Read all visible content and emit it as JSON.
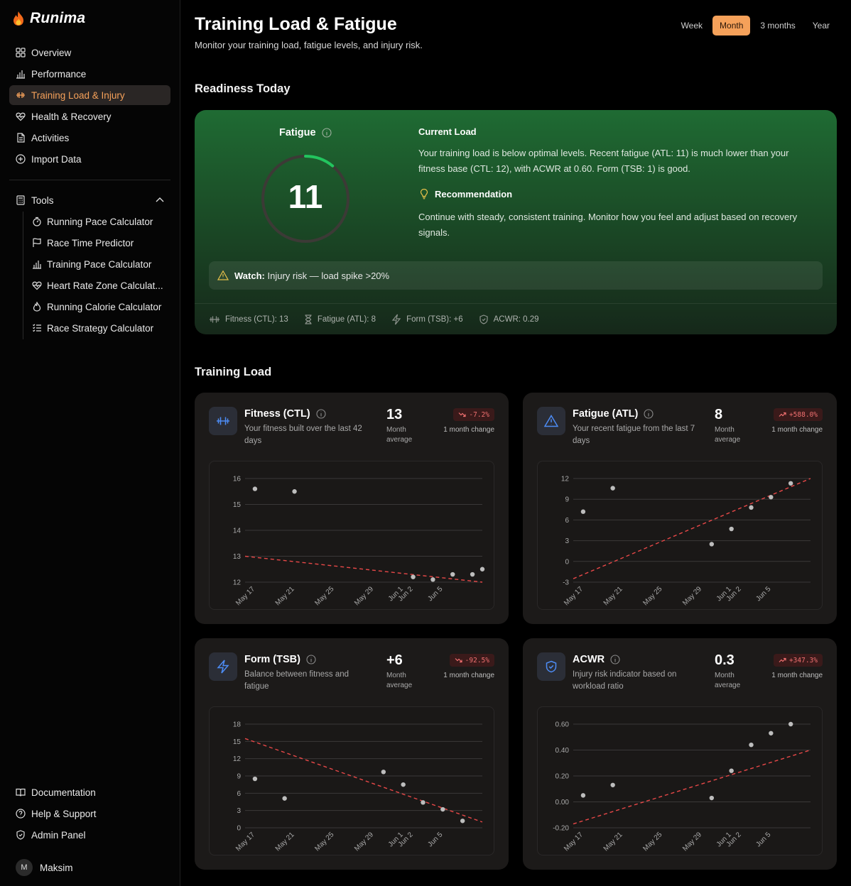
{
  "app": {
    "name": "Runima"
  },
  "sidebar": {
    "items": [
      {
        "label": "Overview",
        "icon": "grid-icon"
      },
      {
        "label": "Performance",
        "icon": "bar-chart-icon"
      },
      {
        "label": "Training Load & Injury",
        "icon": "dumbbell-icon",
        "active": true
      },
      {
        "label": "Health & Recovery",
        "icon": "heart-pulse-icon"
      },
      {
        "label": "Activities",
        "icon": "file-icon"
      },
      {
        "label": "Import Data",
        "icon": "plus-circle-icon"
      }
    ],
    "tools_label": "Tools",
    "tools": [
      {
        "label": "Running Pace Calculator",
        "icon": "timer-icon"
      },
      {
        "label": "Race Time Predictor",
        "icon": "flag-icon"
      },
      {
        "label": "Training Pace Calculator",
        "icon": "bar-chart-icon"
      },
      {
        "label": "Heart Rate Zone Calculat...",
        "icon": "heart-pulse-icon"
      },
      {
        "label": "Running Calorie Calculator",
        "icon": "flame-icon"
      },
      {
        "label": "Race Strategy Calculator",
        "icon": "list-icon"
      }
    ],
    "bottom": [
      {
        "label": "Documentation",
        "icon": "book-icon"
      },
      {
        "label": "Help & Support",
        "icon": "help-icon"
      },
      {
        "label": "Admin Panel",
        "icon": "shield-icon"
      }
    ],
    "user": {
      "initial": "M",
      "name": "Maksim"
    }
  },
  "header": {
    "title": "Training Load & Fatigue",
    "subtitle": "Monitor your training load, fatigue levels, and injury risk.",
    "ranges": [
      "Week",
      "Month",
      "3 months",
      "Year"
    ],
    "active_range": "Month"
  },
  "readiness": {
    "section_title": "Readiness Today",
    "fatigue_label": "Fatigue",
    "fatigue_value": "11",
    "gauge_fraction": 0.11,
    "current_load_title": "Current Load",
    "current_load_text": "Your training load is below optimal levels. Recent fatigue (ATL: 11) is much lower than your fitness base (CTL: 12), with ACWR at 0.60. Form (TSB: 1) is good.",
    "recommendation_title": "Recommendation",
    "recommendation_text": "Continue with steady, consistent training. Monitor how you feel and adjust based on recovery signals.",
    "watch_label": "Watch:",
    "watch_text": "Injury risk — load spike >20%",
    "metrics": [
      {
        "label": "Fitness (CTL): 13",
        "icon": "dumbbell-icon"
      },
      {
        "label": "Fatigue (ATL): 8",
        "icon": "hourglass-icon"
      },
      {
        "label": "Form (TSB): +6",
        "icon": "bolt-icon"
      },
      {
        "label": "ACWR: 0.29",
        "icon": "shield-icon"
      }
    ]
  },
  "training_load": {
    "section_title": "Training Load",
    "avg_label": "Month average",
    "change_label": "1 month change",
    "cards": [
      {
        "title": "Fitness (CTL)",
        "desc": "Your fitness built over the last 42 days",
        "avg": "13",
        "change": "-7.2%",
        "trend": "down",
        "icon": "dumbbell-icon",
        "icon_color": "#4d8cf5"
      },
      {
        "title": "Fatigue (ATL)",
        "desc": "Your recent fatigue from the last 7 days",
        "avg": "8",
        "change": "+588.0%",
        "trend": "up",
        "icon": "warning-icon",
        "icon_color": "#4d8cf5"
      },
      {
        "title": "Form (TSB)",
        "desc": "Balance between fitness and fatigue",
        "avg": "+6",
        "change": "-92.5%",
        "trend": "down",
        "icon": "bolt-icon",
        "icon_color": "#4d8cf5"
      },
      {
        "title": "ACWR",
        "desc": "Injury risk indicator based on workload ratio",
        "avg": "0.3",
        "change": "+347.3%",
        "trend": "up",
        "icon": "shield-check-icon",
        "icon_color": "#4d8cf5"
      }
    ]
  },
  "chart_data": [
    {
      "type": "scatter",
      "title": "Fitness (CTL)",
      "categories": [
        "May 17",
        "May 21",
        "May 25",
        "May 29",
        "Jun 1",
        "Jun 2",
        "Jun 5"
      ],
      "x": [
        17,
        21,
        33,
        35,
        37,
        39,
        40
      ],
      "values": [
        15.6,
        15.5,
        12.2,
        12.1,
        12.3,
        12.3,
        12.5
      ],
      "trendline": [
        13.0,
        12.0
      ],
      "yticks": [
        16,
        15,
        14,
        13,
        12
      ],
      "ylim": [
        12,
        16
      ]
    },
    {
      "type": "scatter",
      "title": "Fatigue (ATL)",
      "categories": [
        "May 17",
        "May 21",
        "May 25",
        "May 29",
        "Jun 1",
        "Jun 2",
        "Jun 5"
      ],
      "x": [
        17,
        20,
        30,
        32,
        34,
        36,
        38
      ],
      "values": [
        7.2,
        10.6,
        2.5,
        4.7,
        7.8,
        9.3,
        11.3
      ],
      "trendline": [
        -2.5,
        12.0
      ],
      "yticks": [
        12,
        9,
        6,
        3,
        0,
        -3
      ],
      "ylim": [
        -3,
        12
      ]
    },
    {
      "type": "scatter",
      "title": "Form (TSB)",
      "categories": [
        "May 17",
        "May 21",
        "May 25",
        "May 29",
        "Jun 1",
        "Jun 2",
        "Jun 5"
      ],
      "x": [
        17,
        20,
        30,
        32,
        34,
        36,
        38
      ],
      "values": [
        8.5,
        5.1,
        9.7,
        7.5,
        4.4,
        3.2,
        1.2
      ],
      "trendline": [
        15.5,
        1.0
      ],
      "yticks": [
        18,
        15,
        12,
        9,
        6,
        3,
        0
      ],
      "ylim": [
        0,
        18
      ]
    },
    {
      "type": "scatter",
      "title": "ACWR",
      "categories": [
        "May 17",
        "May 21",
        "May 25",
        "May 29",
        "Jun 1",
        "Jun 2",
        "Jun 5"
      ],
      "x": [
        17,
        20,
        30,
        32,
        34,
        36,
        38
      ],
      "values": [
        0.05,
        0.13,
        0.03,
        0.24,
        0.44,
        0.53,
        0.6
      ],
      "trendline": [
        -0.17,
        0.4
      ],
      "yticks": [
        "0.60",
        "0.40",
        "0.20",
        "0.00",
        "-0.20"
      ],
      "ylim": [
        -0.2,
        0.6
      ]
    }
  ]
}
